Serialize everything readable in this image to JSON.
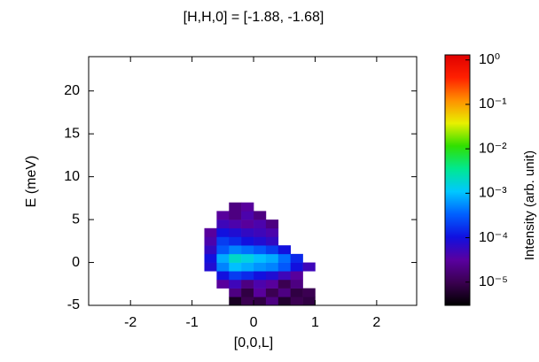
{
  "chart_data": {
    "type": "heatmap",
    "title": "[H,H,0] = [-1.88, -1.68]",
    "x_label": "[0,0,L]",
    "y_label": "E (meV)",
    "colorbar_label": "Intensity (arb. unit)",
    "xlim": [
      -2.68,
      2.65
    ],
    "ylim": [
      -5,
      24
    ],
    "xticks": [
      -2,
      -1,
      0,
      1,
      2
    ],
    "yticks": [
      -5,
      0,
      5,
      10,
      15,
      20
    ],
    "clim": [
      3e-06,
      1.3
    ],
    "color_scale": "log",
    "cticks": [
      {
        "value": 1,
        "label": "10⁰"
      },
      {
        "value": 0.1,
        "label": "10⁻¹"
      },
      {
        "value": 0.01,
        "label": "10⁻²"
      },
      {
        "value": 0.001,
        "label": "10⁻³"
      },
      {
        "value": 0.0001,
        "label": "10⁻⁴"
      },
      {
        "value": 1e-05,
        "label": "10⁻⁵"
      }
    ],
    "colormap": [
      "#000000",
      "#3a0050",
      "#5a00a0",
      "#1010e0",
      "#0060ff",
      "#00c8ff",
      "#00e890",
      "#30e000",
      "#e8f000",
      "#ff9000",
      "#ff2000",
      "#e00000"
    ],
    "x": [
      -0.7,
      -0.5,
      -0.3,
      -0.1,
      0.1,
      0.3,
      0.5,
      0.7,
      0.9,
      1.1
    ],
    "y": [
      -4.5,
      -3.5,
      -2.5,
      -1.5,
      -0.5,
      0.5,
      1.5,
      2.5,
      3.5,
      4.5,
      5.5,
      6.5
    ],
    "z": [
      [
        null,
        null,
        5e-06,
        1e-05,
        8e-06,
        2e-05,
        6e-06,
        1e-05,
        8e-06,
        null
      ],
      [
        null,
        null,
        2e-05,
        8e-06,
        3e-05,
        1e-05,
        2e-05,
        8e-06,
        1e-05,
        null
      ],
      [
        null,
        3e-05,
        5e-05,
        2e-05,
        4e-05,
        3e-05,
        1e-05,
        2e-05,
        null,
        null
      ],
      [
        null,
        0.0001,
        0.0002,
        0.00015,
        0.0001,
        8e-05,
        5e-05,
        3e-05,
        null,
        null
      ],
      [
        8e-05,
        0.0005,
        0.001,
        0.0008,
        0.0006,
        0.0005,
        0.0003,
        0.0001,
        5e-05,
        null
      ],
      [
        0.0001,
        0.0008,
        0.002,
        0.0015,
        0.001,
        0.0008,
        0.0004,
        0.00015,
        null,
        null
      ],
      [
        6e-05,
        0.0003,
        0.0005,
        0.0004,
        0.0003,
        0.0002,
        0.0001,
        null,
        null,
        null
      ],
      [
        4e-05,
        0.0002,
        0.00015,
        0.0001,
        8e-05,
        6e-05,
        null,
        null,
        null,
        null
      ],
      [
        3e-05,
        0.0001,
        8e-05,
        6e-05,
        5e-05,
        4e-05,
        null,
        null,
        null,
        null
      ],
      [
        null,
        5e-05,
        4e-05,
        3e-05,
        4e-05,
        2e-05,
        null,
        null,
        null,
        null
      ],
      [
        null,
        3e-05,
        2e-05,
        4e-05,
        2e-05,
        null,
        null,
        null,
        null,
        null
      ],
      [
        null,
        null,
        2e-05,
        3e-05,
        null,
        null,
        null,
        null,
        null,
        null
      ]
    ]
  }
}
